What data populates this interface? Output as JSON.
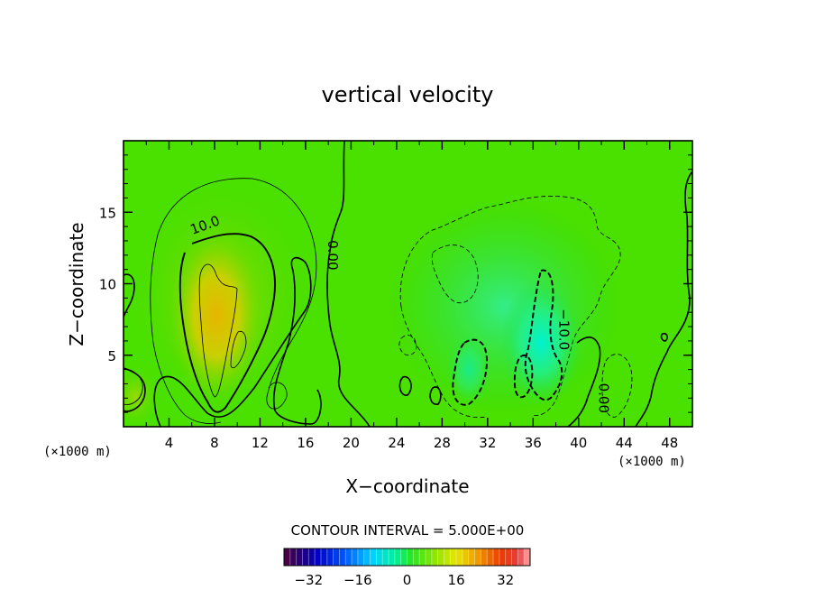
{
  "chart_data": {
    "type": "contour",
    "title": "vertical velocity",
    "xlabel": "X−coordinate",
    "ylabel": "Z−coordinate",
    "x_units": "(×1000 m)",
    "x_units_right": "(×1000 m)",
    "xlim": [
      0,
      50
    ],
    "ylim": [
      0,
      20
    ],
    "x_ticks": [
      4,
      8,
      12,
      16,
      20,
      24,
      28,
      32,
      36,
      40,
      44,
      48
    ],
    "y_ticks": [
      5,
      10,
      15
    ],
    "contour_interval_text": "CONTOUR INTERVAL = 5.000E+00",
    "contour_labels": [
      {
        "text": "10.0",
        "x": 7.3,
        "z": 13.8
      },
      {
        "text": "0.00",
        "x": 18.0,
        "z": 12.0
      },
      {
        "text": "−10.0",
        "x": 38.3,
        "z": 6.8
      },
      {
        "text": "0.00",
        "x": 41.8,
        "z": 2.0
      }
    ],
    "colorbar": {
      "range": [
        -40,
        40
      ],
      "ticks": [
        -32,
        -16,
        0,
        16,
        32
      ],
      "tick_labels": [
        "−32",
        "−16",
        "0",
        "16",
        "32"
      ]
    },
    "grid": false
  }
}
